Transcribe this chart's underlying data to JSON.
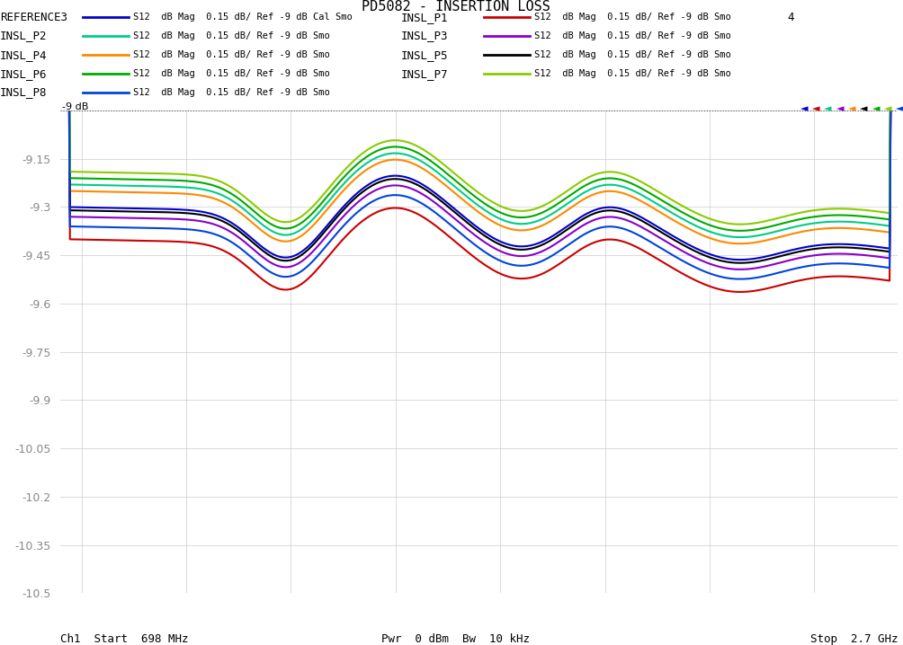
{
  "title": "PD5082 - INSERTION LOSS",
  "xlabel_left": "Ch1  Start  698 MHz",
  "xlabel_center": "Pwr  0 dBm  Bw  10 kHz",
  "xlabel_right": "Stop  2.7 GHz",
  "xmin": 698,
  "xmax": 2700,
  "ymin": -10.5,
  "ymax": -9.0,
  "yticks": [
    -9.0,
    -9.15,
    -9.3,
    -9.45,
    -9.6,
    -9.75,
    -9.9,
    -10.05,
    -10.2,
    -10.35,
    -10.5
  ],
  "legend_entries": [
    {
      "label": "REFERENCE3",
      "color": "#0000cc",
      "desc": "S12  dB Mag  0.15 dB/ Ref -9 dB Cal Smo"
    },
    {
      "label": "INSL_P1",
      "color": "#cc0000",
      "desc": "S12  dB Mag  0.15 dB/ Ref -9 dB Smo"
    },
    {
      "label": "INSL_P2",
      "color": "#00cc88",
      "desc": "S12  dB Mag  0.15 dB/ Ref -9 dB Smo"
    },
    {
      "label": "INSL_P3",
      "color": "#8800cc",
      "desc": "S12  dB Mag  0.15 dB/ Ref -9 dB Smo"
    },
    {
      "label": "INSL_P4",
      "color": "#ff8800",
      "desc": "S12  dB Mag  0.15 dB/ Ref -9 dB Smo"
    },
    {
      "label": "INSL_P5",
      "color": "#000000",
      "desc": "S12  dB Mag  0.15 dB/ Ref -9 dB Smo"
    },
    {
      "label": "INSL_P6",
      "color": "#00aa00",
      "desc": "S12  dB Mag  0.15 dB/ Ref -9 dB Smo"
    },
    {
      "label": "INSL_P7",
      "color": "#88cc00",
      "desc": "S12  dB Mag  0.15 dB/ Ref -9 dB Smo"
    },
    {
      "label": "INSL_P8",
      "color": "#0044dd",
      "desc": "S12  dB Mag  0.15 dB/ Ref -9 dB Smo"
    }
  ],
  "background_color": "#ffffff",
  "grid_color": "#cccccc",
  "number_label": "4",
  "triangle_colors": [
    "#0000cc",
    "#cc0000",
    "#00cc88",
    "#8800cc",
    "#ff8800",
    "#000000",
    "#00aa00",
    "#88cc00",
    "#0044dd"
  ]
}
